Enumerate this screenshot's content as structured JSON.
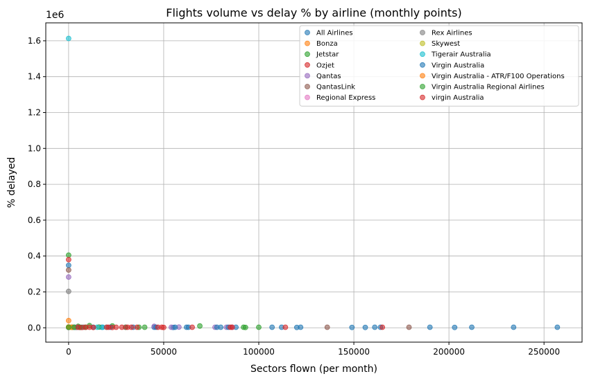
{
  "chart_data": {
    "type": "scatter",
    "title": "Flights volume vs delay % by airline (monthly points)",
    "xlabel": "Sectors flown (per month)",
    "ylabel": "% delayed",
    "y_offset_label": "1e6",
    "xlim": [
      -12000,
      270000
    ],
    "ylim": [
      -80000,
      1700000
    ],
    "x_ticks": [
      0,
      50000,
      100000,
      150000,
      200000,
      250000
    ],
    "x_tick_labels": [
      "0",
      "50000",
      "100000",
      "150000",
      "200000",
      "250000"
    ],
    "y_ticks": [
      0,
      200000,
      400000,
      600000,
      800000,
      1000000,
      1200000,
      1400000,
      1600000
    ],
    "y_tick_labels": [
      "0.0",
      "0.2",
      "0.4",
      "0.6",
      "0.8",
      "1.0",
      "1.2",
      "1.4",
      "1.6"
    ],
    "grid": true,
    "legend_position": "top-right",
    "legend_columns": 2,
    "series": [
      {
        "name": "All Airlines",
        "color": "#1f77b4",
        "points": [
          [
            0,
            1500
          ],
          [
            0,
            348000
          ],
          [
            17500,
            3000
          ],
          [
            45000,
            3000
          ],
          [
            55000,
            2000
          ],
          [
            62000,
            3000
          ],
          [
            80000,
            3000
          ],
          [
            88000,
            3000
          ],
          [
            107000,
            3000
          ],
          [
            112000,
            3000
          ],
          [
            120000,
            2000
          ],
          [
            122000,
            3000
          ],
          [
            149000,
            2000
          ],
          [
            156000,
            2000
          ],
          [
            161000,
            3000
          ],
          [
            164000,
            3000
          ],
          [
            190000,
            3000
          ],
          [
            203000,
            2000
          ],
          [
            212000,
            3000
          ],
          [
            234000,
            3000
          ],
          [
            257000,
            3000
          ]
        ]
      },
      {
        "name": "Bonza",
        "color": "#ff7f0e",
        "points": [
          [
            0,
            40000
          ],
          [
            0,
            5000
          ],
          [
            1500,
            3000
          ]
        ]
      },
      {
        "name": "Jetstar",
        "color": "#2ca02c",
        "points": [
          [
            0,
            405000
          ],
          [
            2000,
            3000
          ],
          [
            5000,
            8000
          ],
          [
            11000,
            12000
          ],
          [
            16000,
            4000
          ],
          [
            23000,
            10000
          ],
          [
            30000,
            3000
          ],
          [
            37000,
            3000
          ],
          [
            40000,
            3000
          ],
          [
            69000,
            10000
          ],
          [
            92000,
            3000
          ],
          [
            93000,
            2000
          ],
          [
            100000,
            3000
          ]
        ]
      },
      {
        "name": "Ozjet",
        "color": "#d62728",
        "points": [
          [
            0,
            380000
          ],
          [
            6000,
            2000
          ]
        ]
      },
      {
        "name": "Qantas",
        "color": "#9467bd",
        "points": [
          [
            0,
            283000
          ],
          [
            5000,
            3000
          ],
          [
            45000,
            8000
          ],
          [
            54000,
            3000
          ],
          [
            58000,
            4000
          ],
          [
            77000,
            3000
          ],
          [
            83000,
            3000
          ],
          [
            86000,
            3000
          ]
        ]
      },
      {
        "name": "QantasLink",
        "color": "#8c564b",
        "points": [
          [
            0,
            322000
          ],
          [
            3000,
            3000
          ],
          [
            8000,
            3000
          ],
          [
            30000,
            3000
          ],
          [
            136000,
            3000
          ],
          [
            179000,
            3000
          ]
        ]
      },
      {
        "name": "Regional Express",
        "color": "#e377c2",
        "points": [
          [
            0,
            3000
          ],
          [
            4000,
            3000
          ]
        ]
      },
      {
        "name": "Rex Airlines",
        "color": "#7f7f7f",
        "points": [
          [
            0,
            203000
          ],
          [
            2000,
            3000
          ],
          [
            4000,
            2000
          ]
        ]
      },
      {
        "name": "Skywest",
        "color": "#bcbd22",
        "points": [
          [
            0,
            3000
          ],
          [
            1000,
            3000
          ]
        ]
      },
      {
        "name": "Tigerair Australia",
        "color": "#17becf",
        "points": [
          [
            0,
            1613000
          ],
          [
            3000,
            3000
          ],
          [
            7000,
            3000
          ],
          [
            15000,
            3000
          ],
          [
            18000,
            3000
          ],
          [
            20000,
            3000
          ]
        ]
      },
      {
        "name": "Virgin Australia",
        "color": "#1f77b4",
        "points": [
          [
            13000,
            3000
          ],
          [
            22000,
            3000
          ],
          [
            34000,
            3000
          ],
          [
            46000,
            3000
          ],
          [
            56000,
            3000
          ],
          [
            63000,
            3000
          ],
          [
            78000,
            3000
          ],
          [
            84000,
            3000
          ]
        ]
      },
      {
        "name": "Virgin Australia - ATR/F100 Operations",
        "color": "#ff7f0e",
        "points": [
          [
            0,
            3000
          ],
          [
            2000,
            3000
          ]
        ]
      },
      {
        "name": "Virgin Australia Regional Airlines",
        "color": "#2ca02c",
        "points": [
          [
            0,
            3000
          ],
          [
            3000,
            3000
          ],
          [
            6000,
            3000
          ],
          [
            9000,
            3000
          ]
        ]
      },
      {
        "name": "virgin Australia",
        "color": "#d62728",
        "points": [
          [
            5000,
            3000
          ],
          [
            7000,
            2000
          ],
          [
            9000,
            3000
          ],
          [
            11000,
            3000
          ],
          [
            13000,
            2000
          ],
          [
            20000,
            3000
          ],
          [
            21000,
            3000
          ],
          [
            23000,
            2000
          ],
          [
            25000,
            3000
          ],
          [
            28000,
            3000
          ],
          [
            31000,
            3000
          ],
          [
            33000,
            3000
          ],
          [
            36000,
            3000
          ],
          [
            47000,
            3000
          ],
          [
            49000,
            3000
          ],
          [
            50000,
            2000
          ],
          [
            65000,
            3000
          ],
          [
            85000,
            3000
          ],
          [
            86000,
            3000
          ],
          [
            114000,
            3000
          ],
          [
            165000,
            3000
          ]
        ]
      }
    ]
  }
}
